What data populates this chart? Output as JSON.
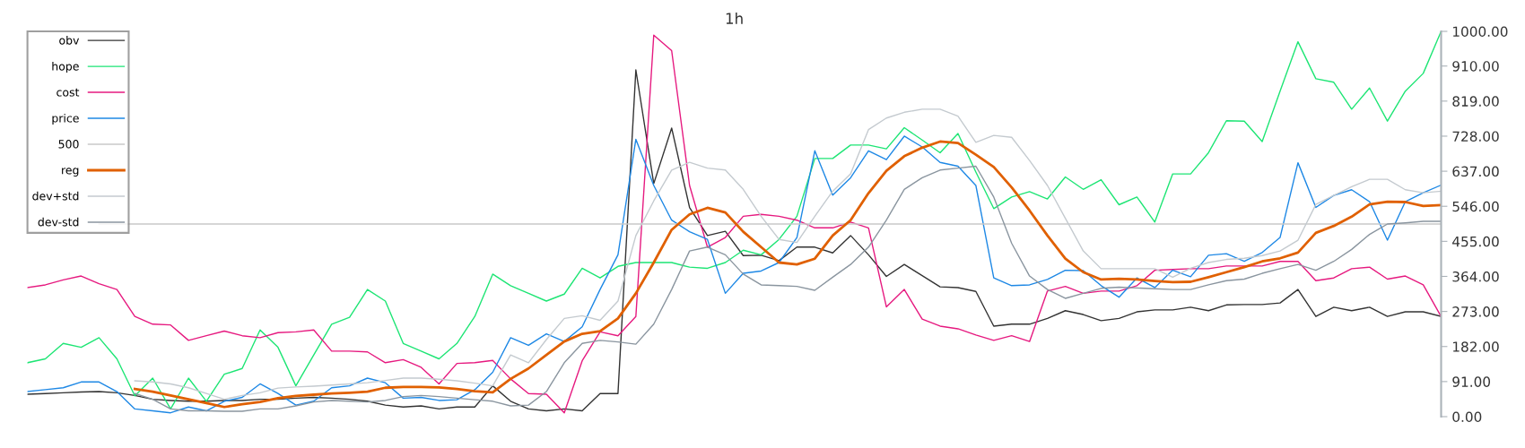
{
  "chart_data": {
    "type": "line",
    "title": "1h",
    "categories": [
      null,
      null,
      null,
      null,
      null,
      null,
      null,
      null,
      null,
      null,
      null,
      null,
      null,
      null,
      null,
      null,
      null,
      null,
      null,
      null,
      null,
      null,
      null,
      null,
      null,
      null,
      null,
      null,
      null,
      null,
      null,
      null,
      null,
      null,
      null,
      null,
      null,
      null,
      null,
      null,
      null,
      null,
      null,
      null,
      null,
      null,
      null,
      null,
      null,
      null,
      null,
      null,
      null,
      null,
      null,
      null,
      null,
      null,
      null,
      null,
      null,
      null,
      null,
      null,
      null,
      null,
      null,
      null,
      null,
      null,
      null,
      null,
      null,
      null,
      null,
      null,
      null,
      null,
      null,
      null
    ],
    "ylim": [
      0,
      1000
    ],
    "yticks": [
      {
        "value": 0,
        "label": "0.00"
      },
      {
        "value": 91,
        "label": "91.00"
      },
      {
        "value": 182,
        "label": "182.00"
      },
      {
        "value": 273,
        "label": "273.00"
      },
      {
        "value": 364,
        "label": "364.00"
      },
      {
        "value": 455,
        "label": "455.00"
      },
      {
        "value": 546,
        "label": "546.00"
      },
      {
        "value": 637,
        "label": "637.00"
      },
      {
        "value": 728,
        "label": "728.00"
      },
      {
        "value": 819,
        "label": "819.00"
      },
      {
        "value": 910,
        "label": "910.00"
      },
      {
        "value": 1000,
        "label": "1000.00"
      }
    ],
    "tick_labels": "y",
    "grid": false,
    "legend": "top left",
    "marker": "none",
    "line_style": "solid",
    "series": [
      {
        "name": "obv",
        "color": "#333333",
        "values": [
          58,
          60,
          62,
          64,
          65,
          62,
          55,
          45,
          42,
          40,
          40,
          42,
          42,
          45,
          45,
          48,
          50,
          48,
          45,
          40,
          30,
          25,
          28,
          20,
          25,
          25,
          80,
          40,
          20,
          15,
          20,
          15,
          60,
          60,
          900,
          605,
          749,
          543,
          470,
          481,
          418,
          419,
          405,
          440,
          440,
          425,
          470,
          420,
          364,
          395,
          366,
          337,
          335,
          325,
          235,
          240,
          240,
          255,
          275,
          265,
          249,
          255,
          272,
          277,
          277,
          284,
          275,
          290,
          291,
          291,
          295,
          330,
          260,
          284,
          275,
          284,
          260,
          272,
          272,
          260
        ]
      },
      {
        "name": "hope",
        "color": "#1de574",
        "values": [
          140,
          150,
          190,
          180,
          205,
          150,
          54,
          100,
          20,
          100,
          40,
          110,
          125,
          225,
          180,
          80,
          160,
          240,
          258,
          330,
          300,
          190,
          170,
          150,
          190,
          260,
          370,
          340,
          320,
          300,
          318,
          385,
          360,
          390,
          400,
          400,
          400,
          388,
          385,
          400,
          432,
          420,
          460,
          520,
          670,
          670,
          705,
          705,
          695,
          750,
          718,
          685,
          735,
          635,
          540,
          570,
          584,
          565,
          622,
          590,
          615,
          550,
          570,
          505,
          630,
          630,
          685,
          768,
          767,
          714,
          845,
          973,
          877,
          868,
          798,
          853,
          767,
          845,
          891,
          1000
        ]
      },
      {
        "name": "cost",
        "color": "#e6197f",
        "values": [
          335,
          342,
          355,
          365,
          345,
          330,
          260,
          240,
          238,
          198,
          210,
          222,
          210,
          205,
          218,
          220,
          225,
          170,
          170,
          168,
          140,
          148,
          128,
          85,
          138,
          140,
          146,
          98,
          60,
          58,
          10,
          145,
          220,
          210,
          260,
          990,
          950,
          600,
          440,
          465,
          520,
          525,
          520,
          510,
          490,
          490,
          505,
          490,
          285,
          330,
          253,
          235,
          228,
          212,
          198,
          210,
          195,
          326,
          338,
          320,
          326,
          326,
          340,
          380,
          382,
          384,
          384,
          391,
          391,
          391,
          403,
          403,
          353,
          360,
          384,
          388,
          357,
          365,
          342,
          260
        ]
      },
      {
        "name": "price",
        "color": "#1e88e5",
        "values": [
          65,
          70,
          75,
          90,
          90,
          65,
          20,
          15,
          10,
          25,
          15,
          40,
          50,
          85,
          60,
          30,
          40,
          75,
          80,
          100,
          88,
          48,
          50,
          42,
          44,
          70,
          115,
          205,
          185,
          215,
          195,
          233,
          330,
          420,
          720,
          600,
          510,
          480,
          460,
          320,
          372,
          378,
          400,
          465,
          690,
          575,
          620,
          690,
          667,
          728,
          700,
          660,
          650,
          600,
          360,
          340,
          342,
          356,
          380,
          379,
          340,
          310,
          360,
          335,
          380,
          363,
          419,
          423,
          403,
          426,
          465,
          659,
          543,
          574,
          589,
          558,
          458,
          558,
          581,
          601
        ]
      },
      {
        "name": "500",
        "color": "#c8c8c8",
        "values": [
          null,
          null,
          null,
          null,
          500,
          500,
          500,
          500,
          500,
          500,
          500,
          500,
          500,
          500,
          500,
          500,
          500,
          500,
          500,
          500,
          500,
          500,
          500,
          500,
          500,
          500,
          500,
          500,
          500,
          500,
          500,
          500,
          500,
          500,
          500,
          500,
          500,
          500,
          500,
          500,
          500,
          500,
          500,
          500,
          500,
          500,
          500,
          500,
          500,
          500,
          500,
          500,
          500,
          500,
          500,
          500,
          500,
          500,
          500,
          500,
          500,
          500,
          500,
          500,
          500,
          500,
          500,
          500,
          500,
          500,
          500,
          500,
          500,
          500,
          500,
          500,
          500,
          500,
          500,
          500
        ]
      },
      {
        "name": "reg",
        "color": "#e06000",
        "values": [
          null,
          null,
          null,
          null,
          null,
          null,
          72,
          65,
          55,
          45,
          35,
          25,
          32,
          38,
          48,
          54,
          57,
          60,
          62,
          65,
          75,
          77,
          77,
          76,
          72,
          66,
          63,
          98,
          125,
          160,
          195,
          215,
          222,
          255,
          320,
          400,
          485,
          525,
          542,
          530,
          480,
          440,
          400,
          395,
          410,
          470,
          510,
          580,
          638,
          676,
          698,
          714,
          710,
          680,
          648,
          595,
          535,
          470,
          410,
          375,
          356,
          358,
          356,
          352,
          349,
          350,
          362,
          375,
          388,
          403,
          411,
          426,
          477,
          495,
          519,
          551,
          558,
          557,
          547,
          549
        ]
      },
      {
        "name": "dev+std",
        "color": "#c4cacf",
        "values": [
          null,
          null,
          null,
          null,
          null,
          null,
          93,
          90,
          85,
          75,
          60,
          45,
          55,
          62,
          74,
          77,
          79,
          82,
          85,
          88,
          94,
          100,
          100,
          97,
          93,
          87,
          80,
          160,
          140,
          200,
          255,
          262,
          250,
          300,
          470,
          560,
          640,
          660,
          645,
          640,
          590,
          520,
          460,
          452,
          520,
          585,
          630,
          745,
          775,
          790,
          798,
          798,
          780,
          712,
          730,
          725,
          665,
          600,
          515,
          430,
          384,
          384,
          384,
          384,
          362,
          385,
          400,
          408,
          411,
          418,
          430,
          458,
          551,
          574,
          597,
          616,
          616,
          589,
          581,
          585
        ]
      },
      {
        "name": "dev-std",
        "color": "#8a959f",
        "values": [
          null,
          null,
          null,
          null,
          null,
          null,
          60,
          45,
          20,
          15,
          15,
          14,
          14,
          20,
          20,
          28,
          38,
          42,
          40,
          38,
          42,
          52,
          55,
          52,
          48,
          44,
          40,
          28,
          30,
          65,
          140,
          190,
          198,
          194,
          188,
          240,
          330,
          430,
          440,
          420,
          370,
          342,
          340,
          338,
          328,
          362,
          395,
          440,
          510,
          590,
          620,
          640,
          645,
          650,
          570,
          450,
          365,
          330,
          307,
          320,
          333,
          336,
          334,
          332,
          330,
          330,
          342,
          353,
          357,
          372,
          384,
          395,
          380,
          403,
          434,
          473,
          500,
          503,
          507,
          507
        ]
      }
    ]
  }
}
